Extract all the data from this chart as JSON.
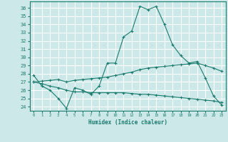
{
  "xlabel": "Humidex (Indice chaleur)",
  "bg_color": "#cce8e8",
  "grid_color": "#ffffff",
  "line_color": "#1a7a6e",
  "xlim": [
    -0.5,
    23.5
  ],
  "ylim": [
    23.5,
    36.8
  ],
  "yticks": [
    24,
    25,
    26,
    27,
    28,
    29,
    30,
    31,
    32,
    33,
    34,
    35,
    36
  ],
  "xticks": [
    0,
    1,
    2,
    3,
    4,
    5,
    6,
    7,
    8,
    9,
    10,
    11,
    12,
    13,
    14,
    15,
    16,
    17,
    18,
    19,
    20,
    21,
    22,
    23
  ],
  "line1_x": [
    0,
    1,
    2,
    3,
    4,
    5,
    6,
    7,
    8,
    9,
    10,
    11,
    12,
    13,
    14,
    15,
    16,
    17,
    18,
    19,
    20,
    21,
    22,
    23
  ],
  "line1_y": [
    27.8,
    26.5,
    26.0,
    25.0,
    23.8,
    26.3,
    26.0,
    25.5,
    26.5,
    29.3,
    29.3,
    32.5,
    33.2,
    36.2,
    35.8,
    36.2,
    34.0,
    31.5,
    30.2,
    29.3,
    29.5,
    27.5,
    25.3,
    24.2
  ],
  "line2_x": [
    0,
    1,
    2,
    3,
    4,
    5,
    6,
    7,
    8,
    9,
    10,
    11,
    12,
    13,
    14,
    15,
    16,
    17,
    18,
    19,
    20,
    21,
    22,
    23
  ],
  "line2_y": [
    27.0,
    27.1,
    27.2,
    27.3,
    27.0,
    27.2,
    27.3,
    27.4,
    27.5,
    27.6,
    27.8,
    28.0,
    28.2,
    28.5,
    28.7,
    28.8,
    28.9,
    29.0,
    29.1,
    29.2,
    29.3,
    29.0,
    28.7,
    28.3
  ],
  "line3_x": [
    0,
    1,
    2,
    3,
    4,
    5,
    6,
    7,
    8,
    9,
    10,
    11,
    12,
    13,
    14,
    15,
    16,
    17,
    18,
    19,
    20,
    21,
    22,
    23
  ],
  "line3_y": [
    27.0,
    26.8,
    26.5,
    26.3,
    26.0,
    25.8,
    25.8,
    25.7,
    25.7,
    25.7,
    25.7,
    25.7,
    25.6,
    25.5,
    25.5,
    25.4,
    25.3,
    25.2,
    25.1,
    25.0,
    24.9,
    24.8,
    24.7,
    24.5
  ]
}
